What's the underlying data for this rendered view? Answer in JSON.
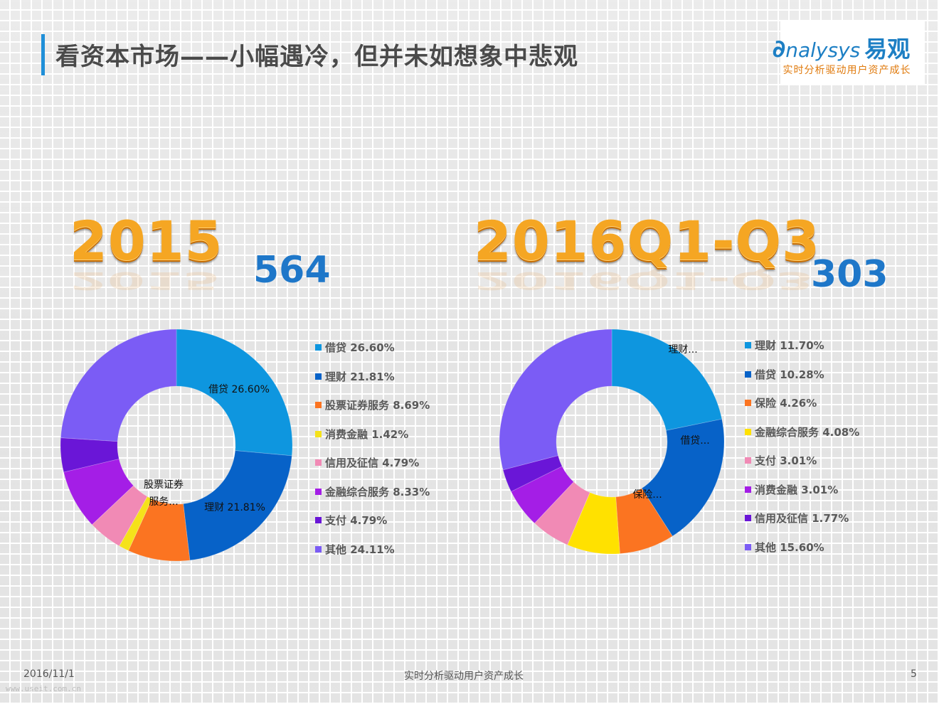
{
  "header": {
    "title": "看资本市场——小幅遇冷，但并未如想象中悲观"
  },
  "logo": {
    "main": "nalysys",
    "cn": "易观",
    "sub": "实时分析驱动用户资产成长",
    "color": "#1d7fc4",
    "sub_color": "#e07a0c"
  },
  "panels": {
    "left": {
      "year": "2015",
      "count": "564"
    },
    "right": {
      "year": "2016Q1-Q3",
      "count": "303"
    }
  },
  "chart_data": [
    {
      "type": "pie",
      "donut": true,
      "categories": [
        "借贷",
        "理财",
        "股票证券服务",
        "消费金融",
        "信用及征信",
        "金融综合服务",
        "支付",
        "其他"
      ],
      "values": [
        26.6,
        21.81,
        8.69,
        1.42,
        4.79,
        8.33,
        4.79,
        24.11
      ],
      "colors": [
        "#0e96df",
        "#0762c8",
        "#fb7421",
        "#f5e21a",
        "#f18ab5",
        "#a41ee6",
        "#6a16d7",
        "#7b5cf5"
      ],
      "legend": [
        "借贷 26.60%",
        "理财 21.81%",
        "股票证券服务 8.69%",
        "消费金融 1.42%",
        "信用及征信 4.79%",
        "金融综合服务 8.33%",
        "支付 4.79%",
        "其他 24.11%"
      ],
      "slice_labels": [
        {
          "index": 0,
          "lines": [
            "借贷 26.60%"
          ]
        },
        {
          "index": 1,
          "lines": [
            "理财 21.81%"
          ]
        },
        {
          "index": 2,
          "lines": [
            "股票证券",
            "服务..."
          ]
        }
      ],
      "legend_placement": "right"
    },
    {
      "type": "pie",
      "donut": true,
      "categories": [
        "理财",
        "借贷",
        "保险",
        "金融综合服务",
        "支付",
        "消费金融",
        "信用及征信",
        "其他"
      ],
      "values": [
        11.7,
        10.28,
        4.26,
        4.08,
        3.01,
        3.01,
        1.77,
        15.6
      ],
      "colors": [
        "#0e96df",
        "#0762c8",
        "#fb7421",
        "#ffe100",
        "#f18ab5",
        "#a41ee6",
        "#6a16d7",
        "#7b5cf5"
      ],
      "legend": [
        "理财 11.70%",
        "借贷 10.28%",
        "保险 4.26%",
        "金融综合服务 4.08%",
        "支付  3.01%",
        "消费金融 3.01%",
        "信用及征信 1.77%",
        "其他 15.60%"
      ],
      "slice_labels": [
        {
          "index": 0,
          "lines": [
            "理财..."
          ]
        },
        {
          "index": 1,
          "lines": [
            "借贷..."
          ]
        },
        {
          "index": 2,
          "lines": [
            "保险..."
          ]
        }
      ],
      "legend_placement": "right"
    }
  ],
  "footer": {
    "date": "2016/11/1",
    "center": "实时分析驱动用户资产成长",
    "page": "5",
    "watermark": "www.useit.com.cn"
  }
}
